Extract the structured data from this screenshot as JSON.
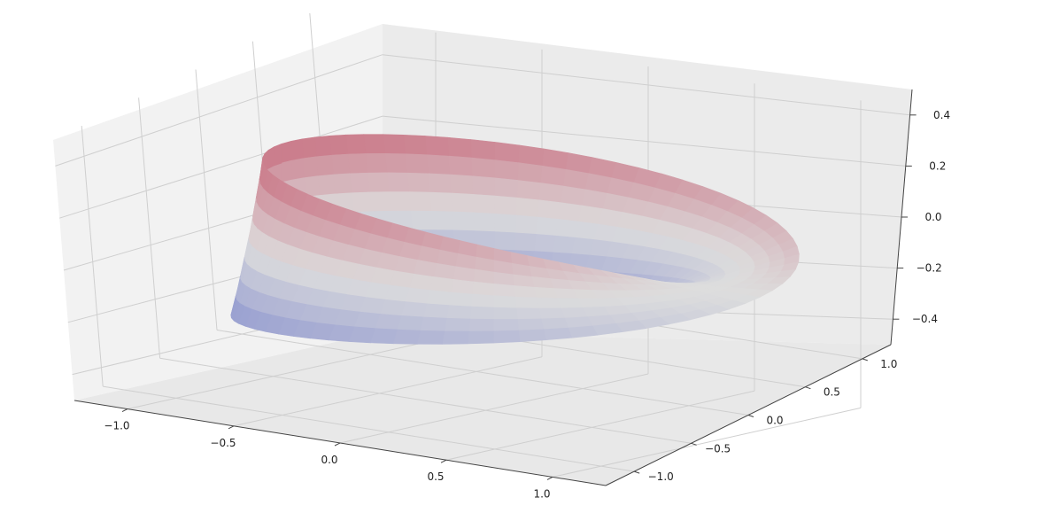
{
  "chart_data": {
    "type": "surface3d",
    "title": "",
    "xlabel": "",
    "ylabel": "",
    "zlabel": "",
    "surface": "mobius-strip",
    "colormap": "coolwarm",
    "x_ticks": [
      "−1.0",
      "−0.5",
      "0.0",
      "0.5",
      "1.0"
    ],
    "x_tick_values": [
      -1.0,
      -0.5,
      0.0,
      0.5,
      1.0
    ],
    "y_ticks": [
      "−1.0",
      "−0.5",
      "0.0",
      "0.5",
      "1.0"
    ],
    "y_tick_values": [
      -1.0,
      -0.5,
      0.0,
      0.5,
      1.0
    ],
    "z_ticks": [
      "−0.4",
      "−0.2",
      "0.0",
      "0.2",
      "0.4"
    ],
    "z_tick_values": [
      -0.4,
      -0.2,
      0.0,
      0.2,
      0.4
    ],
    "xlim": [
      -1.25,
      1.25
    ],
    "ylim": [
      -1.25,
      1.25
    ],
    "zlim": [
      -0.5,
      0.5
    ],
    "grid": true,
    "pane_color": "#f2f2f2",
    "colors": {
      "low": "#3b4cc0",
      "mid": "#dddddd",
      "high": "#b40426"
    }
  }
}
